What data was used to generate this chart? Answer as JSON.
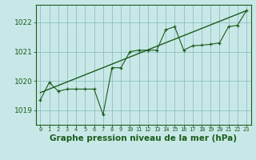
{
  "title": "Graphe pression niveau de la mer (hPa)",
  "background_color": "#c8e8e8",
  "plot_bg_color": "#c8e8e8",
  "line_color": "#1a5c1a",
  "grid_color": "#8fbfbf",
  "text_color": "#1a5c1a",
  "spine_color": "#1a5c1a",
  "xlim": [
    -0.5,
    23.5
  ],
  "ylim": [
    1018.5,
    1022.6
  ],
  "yticks": [
    1019,
    1020,
    1021,
    1022
  ],
  "xticks": [
    0,
    1,
    2,
    3,
    4,
    5,
    6,
    7,
    8,
    9,
    10,
    11,
    12,
    13,
    14,
    15,
    16,
    17,
    18,
    19,
    20,
    21,
    22,
    23
  ],
  "data_x": [
    0,
    1,
    2,
    3,
    4,
    5,
    6,
    7,
    8,
    9,
    10,
    11,
    12,
    13,
    14,
    15,
    16,
    17,
    18,
    19,
    20,
    21,
    22,
    23
  ],
  "data_y": [
    1019.35,
    1019.95,
    1019.65,
    1019.72,
    1019.72,
    1019.72,
    1019.72,
    1018.85,
    1020.45,
    1020.45,
    1021.0,
    1021.05,
    1021.05,
    1021.05,
    1021.75,
    1021.85,
    1021.05,
    1021.2,
    1021.22,
    1021.25,
    1021.3,
    1021.85,
    1021.9,
    1022.4
  ],
  "trend_x": [
    0,
    23
  ],
  "trend_y": [
    1019.6,
    1022.4
  ],
  "title_fontsize": 7.5,
  "xlabel_fontsize": 5.0,
  "ylabel_fontsize": 6.5
}
